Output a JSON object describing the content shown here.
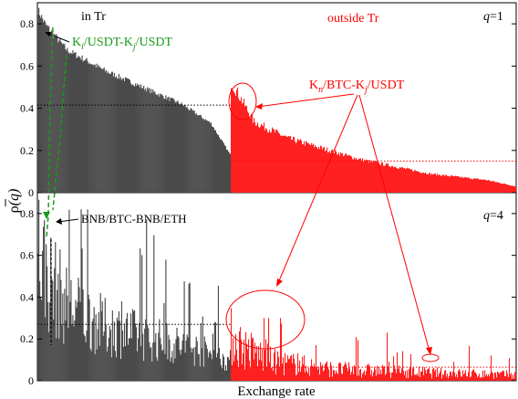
{
  "chart_data": [
    {
      "type": "bar",
      "panel": "top",
      "q_label_prefix": "q",
      "q_label_value": "=1",
      "ylim": [
        0,
        0.9
      ],
      "yticks": [
        "0",
        "0.2",
        "0.4",
        "0.6",
        "0.8"
      ],
      "ytick_values": [
        0,
        0.2,
        0.4,
        0.6,
        0.8
      ],
      "region_labels": {
        "inside": "in Tr",
        "outside": "outside Tr"
      },
      "inside_mean": 0.415,
      "outside_mean": 0.15,
      "inside_profile": [
        [
          0,
          0.87
        ],
        [
          0.04,
          0.8
        ],
        [
          0.15,
          0.68
        ],
        [
          0.35,
          0.58
        ],
        [
          0.55,
          0.5
        ],
        [
          0.75,
          0.42
        ],
        [
          0.9,
          0.33
        ],
        [
          1,
          0.18
        ]
      ],
      "outside_profile": [
        [
          0,
          0.53
        ],
        [
          0.03,
          0.46
        ],
        [
          0.08,
          0.34
        ],
        [
          0.2,
          0.26
        ],
        [
          0.45,
          0.16
        ],
        [
          0.7,
          0.09
        ],
        [
          0.9,
          0.06
        ],
        [
          1,
          0.03
        ]
      ],
      "annotations": [
        {
          "id": "ki-usdt",
          "text_parts": [
            "K",
            "i",
            "/USDT-K",
            "j",
            "/USDT"
          ],
          "color": "#1a9a1a"
        },
        {
          "id": "kn-btc",
          "text_parts": [
            "K",
            "n",
            "/BTC-K",
            "j",
            "/USDT"
          ],
          "color": "#ff0000"
        }
      ]
    },
    {
      "type": "bar",
      "panel": "bottom",
      "q_label_prefix": "q",
      "q_label_value": "=4",
      "ylim": [
        0,
        0.9
      ],
      "yticks": [
        "0",
        "0.2",
        "0.4",
        "0.6",
        "0.8"
      ],
      "ytick_values": [
        0,
        0.2,
        0.4,
        0.6,
        0.8
      ],
      "inside_mean": 0.27,
      "outside_mean": 0.065,
      "inside_profile": [
        [
          0,
          0.8
        ],
        [
          0.05,
          0.62
        ],
        [
          0.15,
          0.45
        ],
        [
          0.35,
          0.32
        ],
        [
          0.6,
          0.25
        ],
        [
          0.85,
          0.18
        ],
        [
          1,
          0.12
        ]
      ],
      "outside_profile": [
        [
          0,
          0.3
        ],
        [
          0.05,
          0.22
        ],
        [
          0.15,
          0.13
        ],
        [
          0.35,
          0.08
        ],
        [
          0.6,
          0.06
        ],
        [
          1,
          0.04
        ]
      ],
      "annotations": [
        {
          "id": "bnb",
          "text": "BNB/BTC-BNB/ETH",
          "color": "#000000"
        }
      ]
    }
  ],
  "axes": {
    "xlabel": "Exchange rate",
    "ylabel_prefix": "ρ",
    "ylabel_suffix": "(q)"
  },
  "colors": {
    "inside": "#4a4a4a",
    "outside": "#ff2020",
    "annotation_red": "#ff0000",
    "annotation_green": "#1a9a1a"
  }
}
